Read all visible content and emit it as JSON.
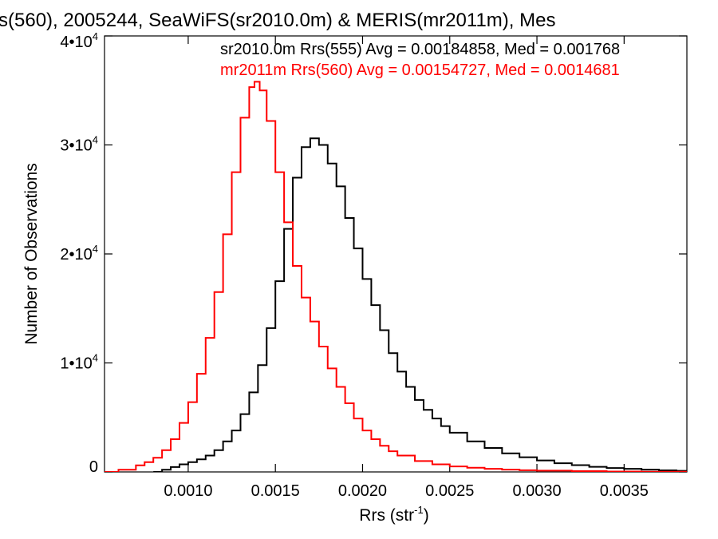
{
  "chart_data": {
    "type": "line",
    "title": "s(560), 2005244, SeaWiFS(sr2010.0m) & MERIS(mr2011m), Mes",
    "xlabel": "Rrs (str",
    "xlabel_sup": "-1",
    "xlabel_close": ")",
    "ylabel": "Number of Observations",
    "xlim": [
      0.00052,
      0.00386
    ],
    "ylim": [
      0,
      40000
    ],
    "x_ticks": [
      {
        "value": 0.001,
        "label": "0.0010"
      },
      {
        "value": 0.0015,
        "label": "0.0015"
      },
      {
        "value": 0.002,
        "label": "0.0020"
      },
      {
        "value": 0.0025,
        "label": "0.0025"
      },
      {
        "value": 0.003,
        "label": "0.0030"
      },
      {
        "value": 0.0035,
        "label": "0.0035"
      }
    ],
    "y_ticks": [
      {
        "value": 0,
        "mant": "0",
        "exp": ""
      },
      {
        "value": 10000,
        "mant": "1•10",
        "exp": "4"
      },
      {
        "value": 20000,
        "mant": "2•10",
        "exp": "4"
      },
      {
        "value": 30000,
        "mant": "3•10",
        "exp": "4"
      },
      {
        "value": 40000,
        "mant": "4•10",
        "exp": "4"
      }
    ],
    "grid": false,
    "legend_position": "top-right",
    "step": true,
    "series": [
      {
        "name": "sr2010.0m Rrs(555) Avg = 0.00184858, Med = 0.001768",
        "color": "#000000",
        "x": [
          0.0008,
          0.00085,
          0.0009,
          0.00095,
          0.001,
          0.00105,
          0.0011,
          0.00115,
          0.0012,
          0.00125,
          0.0013,
          0.00135,
          0.0014,
          0.00145,
          0.0015,
          0.00155,
          0.0016,
          0.00165,
          0.0017,
          0.00175,
          0.0018,
          0.00185,
          0.0019,
          0.00195,
          0.002,
          0.00205,
          0.0021,
          0.00215,
          0.0022,
          0.00225,
          0.0023,
          0.00235,
          0.0024,
          0.00245,
          0.0025,
          0.0026,
          0.0027,
          0.0028,
          0.0029,
          0.003,
          0.0031,
          0.0032,
          0.0033,
          0.0034,
          0.0035,
          0.0036,
          0.0037,
          0.0038,
          0.00386
        ],
        "values": [
          0,
          200,
          450,
          700,
          900,
          1150,
          1500,
          2000,
          2800,
          3800,
          5300,
          7300,
          9800,
          13200,
          17500,
          22300,
          27000,
          29800,
          30600,
          30000,
          28300,
          26200,
          23300,
          20500,
          17700,
          15300,
          13000,
          10900,
          9200,
          7800,
          6600,
          5700,
          4900,
          4200,
          3600,
          2800,
          2200,
          1700,
          1350,
          1050,
          800,
          620,
          470,
          360,
          280,
          210,
          150,
          100,
          80
        ]
      },
      {
        "name": "mr2011m Rrs(560) Avg = 0.00154727, Med = 0.0014681",
        "color": "#ff0000",
        "x": [
          0.00052,
          0.0006,
          0.0007,
          0.00075,
          0.0008,
          0.00085,
          0.0009,
          0.00095,
          0.001,
          0.00105,
          0.0011,
          0.00115,
          0.0012,
          0.00125,
          0.0013,
          0.00135,
          0.00138,
          0.00141,
          0.00145,
          0.0015,
          0.00155,
          0.0016,
          0.00165,
          0.0017,
          0.00175,
          0.0018,
          0.00185,
          0.0019,
          0.00195,
          0.002,
          0.00205,
          0.0021,
          0.00215,
          0.0022,
          0.0023,
          0.0024,
          0.0025,
          0.0026,
          0.0027,
          0.0028,
          0.0029,
          0.003,
          0.0032,
          0.0034,
          0.0036,
          0.00386
        ],
        "values": [
          0,
          200,
          600,
          900,
          1300,
          2000,
          3000,
          4500,
          6400,
          9000,
          12300,
          16500,
          21800,
          27500,
          32500,
          35300,
          35800,
          35000,
          32200,
          27500,
          22900,
          18900,
          16000,
          13800,
          11500,
          9500,
          7800,
          6300,
          4900,
          3800,
          3000,
          2400,
          1900,
          1500,
          1000,
          700,
          500,
          380,
          280,
          210,
          160,
          120,
          70,
          40,
          20,
          10
        ]
      }
    ]
  }
}
